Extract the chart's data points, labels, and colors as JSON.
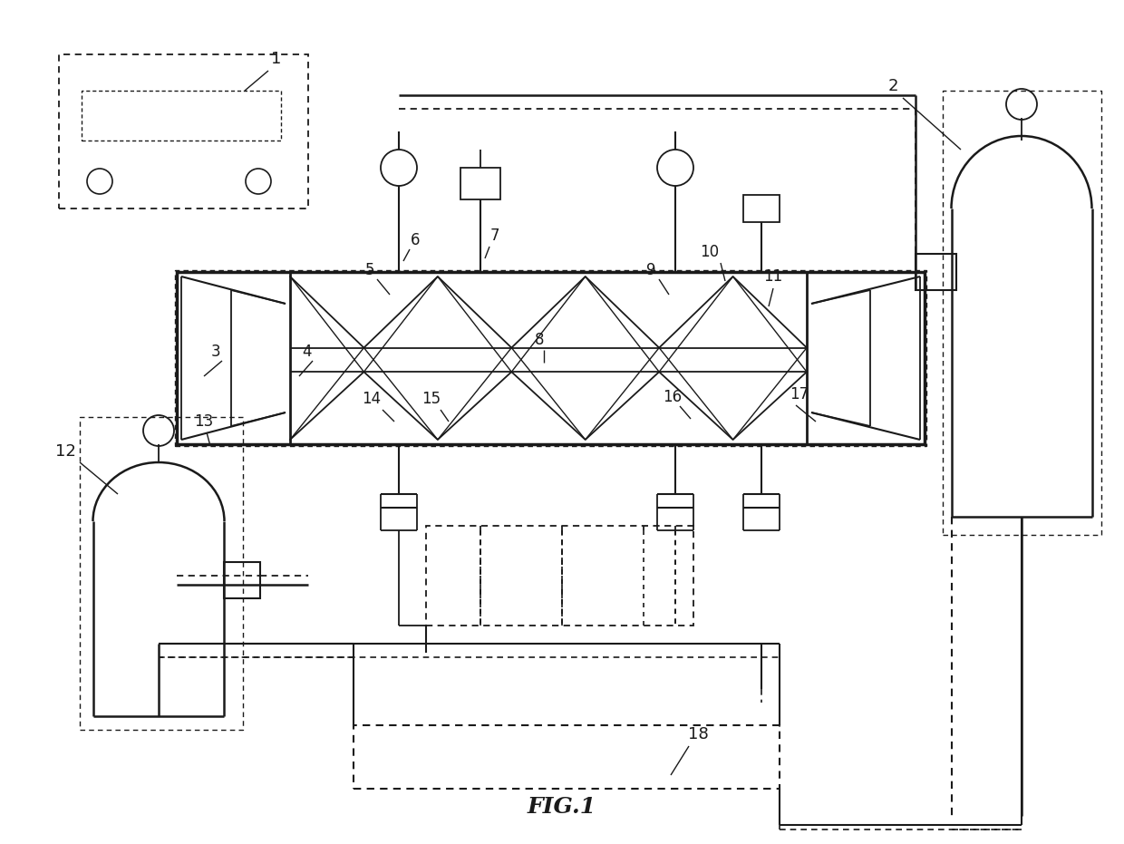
{
  "title": "FIG.1",
  "bg": "#ffffff",
  "lc": "#1a1a1a",
  "fig_width": 12.4,
  "fig_height": 9.31
}
